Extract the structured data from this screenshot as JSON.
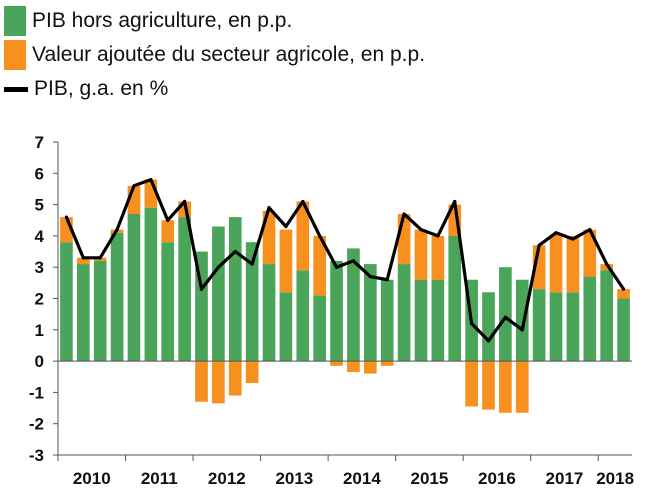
{
  "chart_data": {
    "type": "bar",
    "title": "",
    "xlabel": "",
    "ylabel": "",
    "ylim": [
      -3,
      7
    ],
    "yticks": [
      7,
      6,
      5,
      4,
      3,
      2,
      1,
      0,
      -1,
      -2,
      -3
    ],
    "xtick_labels": [
      "2010",
      "2011",
      "2012",
      "2013",
      "2014",
      "2015",
      "2016",
      "2017",
      "2018"
    ],
    "categories": [
      "2010T1",
      "2010T2",
      "2010T3",
      "2010T4",
      "2011T1",
      "2011T2",
      "2011T3",
      "2011T4",
      "2012T1",
      "2012T2",
      "2012T3",
      "2012T4",
      "2013T1",
      "2013T2",
      "2013T3",
      "2013T4",
      "2014T1",
      "2014T2",
      "2014T3",
      "2014T4",
      "2015T1",
      "2015T2",
      "2015T3",
      "2015T4",
      "2016T1",
      "2016T2",
      "2016T3",
      "2016T4",
      "2017T1",
      "2017T2",
      "2017T3",
      "2017T4",
      "2018T1",
      "2018T2"
    ],
    "series": [
      {
        "name": "PIB hors agriculture, en p.p.",
        "kind": "bar",
        "color": "#4aa55a",
        "values": [
          3.8,
          3.1,
          3.2,
          4.1,
          4.7,
          4.9,
          3.8,
          4.6,
          3.5,
          4.3,
          4.6,
          3.8,
          3.1,
          2.2,
          2.9,
          2.1,
          3.2,
          3.6,
          3.1,
          2.6,
          3.1,
          2.6,
          2.6,
          4.0,
          2.6,
          2.2,
          3.0,
          2.6,
          2.3,
          2.2,
          2.2,
          2.7,
          2.9,
          2.0
        ]
      },
      {
        "name": "Valeur ajoutée du secteur agricole, en p.p.",
        "kind": "bar",
        "color": "#f7901e",
        "values": [
          0.8,
          0.2,
          0.1,
          0.1,
          0.9,
          0.9,
          0.7,
          0.5,
          -1.3,
          -1.35,
          -1.1,
          -0.7,
          1.7,
          2.0,
          2.2,
          1.9,
          -0.15,
          -0.35,
          -0.4,
          -0.15,
          1.6,
          1.6,
          1.4,
          1.0,
          -1.45,
          -1.55,
          -1.65,
          -1.65,
          1.4,
          1.85,
          1.8,
          1.5,
          0.2,
          0.3
        ]
      },
      {
        "name": "PIB, g.a. en %",
        "kind": "line",
        "color": "#000000",
        "values": [
          4.6,
          3.3,
          3.3,
          4.2,
          5.6,
          5.8,
          4.5,
          5.1,
          2.3,
          3.0,
          3.5,
          3.1,
          4.9,
          4.3,
          5.1,
          4.0,
          3.0,
          3.2,
          2.7,
          2.6,
          4.7,
          4.2,
          4.0,
          5.1,
          1.2,
          0.65,
          1.4,
          1.0,
          3.7,
          4.1,
          3.9,
          4.2,
          3.1,
          2.3
        ]
      }
    ]
  }
}
